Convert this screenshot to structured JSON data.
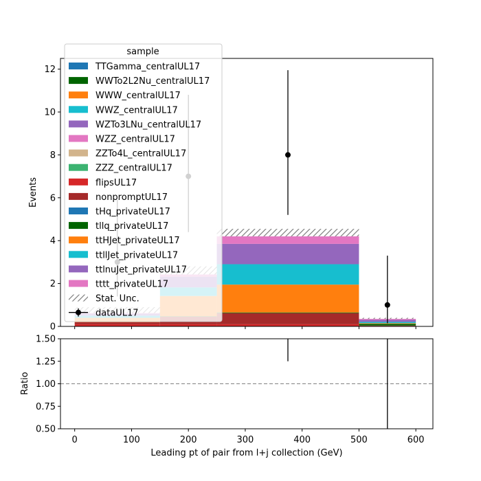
{
  "chart_data": [
    {
      "type": "bar",
      "stacked": true,
      "xlabel": "Leading pt of pair from l+j collection (GeV)",
      "ylabel": "Events",
      "xlim": [
        -25,
        630
      ],
      "ylim": [
        0,
        12.5
      ],
      "x_ticks": [
        0,
        100,
        200,
        300,
        400,
        500,
        600
      ],
      "y_ticks": [
        0,
        2,
        4,
        6,
        8,
        10,
        12
      ],
      "bin_edges": [
        0,
        150,
        250,
        500,
        600
      ],
      "legend": {
        "title": "sample",
        "placement": "upper left",
        "entries": [
          {
            "label": "TTGamma_centralUL17",
            "color": "#1f77b4"
          },
          {
            "label": "WWTo2L2Nu_centralUL17",
            "color": "#006400"
          },
          {
            "label": "WWW_centralUL17",
            "color": "#ff7f0e"
          },
          {
            "label": "WWZ_centralUL17",
            "color": "#17becf"
          },
          {
            "label": "WZTo3LNu_centralUL17",
            "color": "#9467bd"
          },
          {
            "label": "WZZ_centralUL17",
            "color": "#e377c2"
          },
          {
            "label": "ZZTo4L_centralUL17",
            "color": "#d2b48c"
          },
          {
            "label": "ZZZ_centralUL17",
            "color": "#3cb371"
          },
          {
            "label": "flipsUL17",
            "color": "#d62728"
          },
          {
            "label": "nonpromptUL17",
            "color": "#a52a2a"
          },
          {
            "label": "tHq_privateUL17",
            "color": "#1f77b4"
          },
          {
            "label": "tllq_privateUL17",
            "color": "#006400"
          },
          {
            "label": "ttHJet_privateUL17",
            "color": "#ff7f0e"
          },
          {
            "label": "ttllJet_privateUL17",
            "color": "#17becf"
          },
          {
            "label": "ttlnuJet_privateUL17",
            "color": "#9467bd"
          },
          {
            "label": "tttt_privateUL17",
            "color": "#e377c2"
          },
          {
            "label": "Stat. Unc.",
            "color": "#808080"
          },
          {
            "label": "dataUL17",
            "color": "#000000"
          }
        ]
      },
      "series": [
        {
          "name": "flipsUL17",
          "color": "#d62728",
          "values": [
            0.1,
            0.1,
            0.1,
            0.02
          ]
        },
        {
          "name": "nonpromptUL17",
          "color": "#a52a2a",
          "values": [
            0.1,
            0.35,
            0.52,
            0.02
          ]
        },
        {
          "name": "tllq_privateUL17",
          "color": "#006400",
          "values": [
            0.0,
            0.02,
            0.03,
            0.08
          ]
        },
        {
          "name": "ttHJet_privateUL17",
          "color": "#ff7f0e",
          "values": [
            0.2,
            0.95,
            1.3,
            0.03
          ]
        },
        {
          "name": "ttllJet_privateUL17",
          "color": "#17becf",
          "values": [
            0.1,
            0.4,
            0.95,
            0.06
          ]
        },
        {
          "name": "ttlnuJet_privateUL17",
          "color": "#9467bd",
          "values": [
            0.1,
            0.5,
            0.95,
            0.1
          ]
        },
        {
          "name": "tttt_privateUL17",
          "color": "#e377c2",
          "values": [
            0.02,
            0.1,
            0.35,
            0.04
          ]
        }
      ],
      "stat_unc_top": [
        0.9,
        2.8,
        4.55,
        0.4
      ],
      "data": {
        "name": "dataUL17",
        "x": [
          75,
          200,
          375,
          550
        ],
        "y": [
          3,
          7,
          8,
          1
        ],
        "yerr_low": [
          1.6,
          2.6,
          2.8,
          0.85
        ],
        "yerr_high": [
          2.9,
          3.8,
          3.95,
          2.3
        ]
      }
    },
    {
      "type": "scatter",
      "xlabel": "Leading pt of pair from l+j collection (GeV)",
      "ylabel": "Ratio",
      "xlim": [
        -25,
        630
      ],
      "ylim": [
        0.5,
        1.5
      ],
      "x_ticks": [
        0,
        100,
        200,
        300,
        400,
        500,
        600
      ],
      "y_ticks": [
        "0.50",
        "0.75",
        "1.00",
        "1.25",
        "1.50"
      ],
      "reference_line": 1.0,
      "error_bars": [
        {
          "x": 375,
          "low": 1.25,
          "high": 1.5
        },
        {
          "x": 550,
          "low": 0.5,
          "high": 1.5
        }
      ]
    }
  ]
}
